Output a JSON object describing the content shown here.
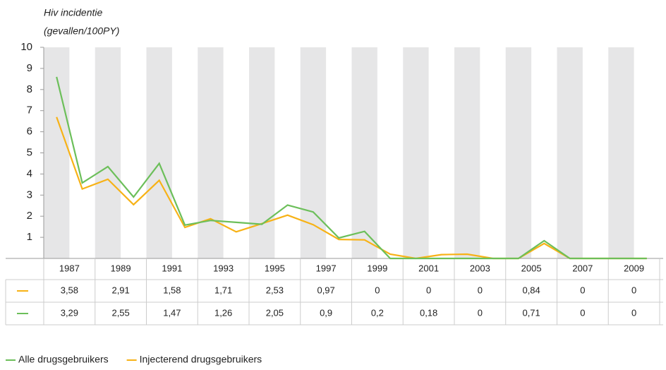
{
  "chart_data": {
    "type": "line",
    "title": [
      "Hiv incidentie",
      "(gevallen/100PY)"
    ],
    "categories": [
      null,
      "1987",
      null,
      "1989",
      null,
      "1991",
      null,
      "1993",
      null,
      "1995",
      null,
      "1997",
      null,
      "1999",
      null,
      "2001",
      null,
      "2003",
      null,
      "2005",
      null,
      "2007",
      null,
      "2009"
    ],
    "series": [
      {
        "name": "Alle drugsgebruikers",
        "color": "#6cbf5a",
        "values": [
          8.6,
          3.58,
          4.35,
          2.91,
          4.5,
          1.58,
          1.8,
          1.71,
          1.62,
          2.53,
          2.2,
          0.97,
          1.28,
          0,
          0,
          0,
          0,
          0,
          0,
          0.84,
          0,
          0,
          0,
          0
        ],
        "value_labels": [
          null,
          "3,58",
          null,
          "2,91",
          null,
          "1,58",
          null,
          "1,71",
          null,
          "2,53",
          null,
          "0,97",
          null,
          "0",
          null,
          "0",
          null,
          "0",
          null,
          "0,84",
          null,
          "0",
          null,
          "0"
        ]
      },
      {
        "name": "Injecterend drugsgebruikers",
        "color": "#f7b216",
        "values": [
          6.7,
          3.29,
          3.75,
          2.55,
          3.7,
          1.47,
          1.88,
          1.26,
          1.65,
          2.05,
          1.6,
          0.9,
          0.88,
          0.2,
          0,
          0.18,
          0.2,
          0,
          0,
          0.71,
          0,
          0,
          0,
          0
        ],
        "value_labels": [
          null,
          "3,29",
          null,
          "2,55",
          null,
          "1,47",
          null,
          "1,26",
          null,
          "2,05",
          null,
          "0,9",
          null,
          "0,2",
          null,
          "0,18",
          null,
          "0",
          null,
          "0,71",
          null,
          "0",
          null,
          "0"
        ]
      }
    ],
    "ylim": [
      0,
      10
    ],
    "yticks": [
      1,
      2,
      3,
      4,
      5,
      6,
      7,
      8,
      9,
      10
    ]
  }
}
